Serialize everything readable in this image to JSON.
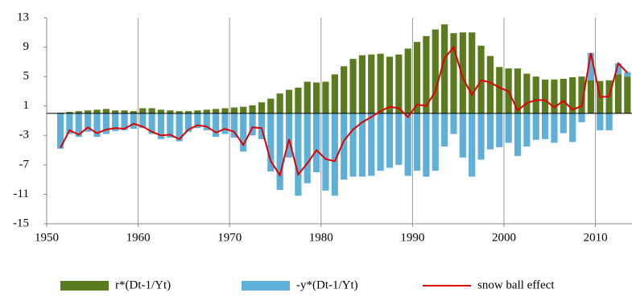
{
  "chart_data": {
    "type": "bar",
    "x": [
      1951,
      1952,
      1953,
      1954,
      1955,
      1956,
      1957,
      1958,
      1959,
      1960,
      1961,
      1962,
      1963,
      1964,
      1965,
      1966,
      1967,
      1968,
      1969,
      1970,
      1971,
      1972,
      1973,
      1974,
      1975,
      1976,
      1977,
      1978,
      1979,
      1980,
      1981,
      1982,
      1983,
      1984,
      1985,
      1986,
      1987,
      1988,
      1989,
      1990,
      1991,
      1992,
      1993,
      1994,
      1995,
      1996,
      1997,
      1998,
      1999,
      2000,
      2001,
      2002,
      2003,
      2004,
      2005,
      2006,
      2007,
      2008,
      2009,
      2010,
      2011,
      2012,
      2013
    ],
    "series": [
      {
        "name": "r*(Dt-1/Yt)",
        "color": "#5b7b1f",
        "kind": "bar",
        "values": [
          0.1,
          0.2,
          0.3,
          0.4,
          0.5,
          0.6,
          0.4,
          0.4,
          0.3,
          0.7,
          0.7,
          0.5,
          0.4,
          0.3,
          0.3,
          0.4,
          0.5,
          0.6,
          0.7,
          0.8,
          0.9,
          1.1,
          1.5,
          2.0,
          2.7,
          3.2,
          3.5,
          4.3,
          4.2,
          4.3,
          5.3,
          6.4,
          7.4,
          7.9,
          8.0,
          8.1,
          7.7,
          8.0,
          8.8,
          9.7,
          10.5,
          11.4,
          12.1,
          10.9,
          11.0,
          11.0,
          9.2,
          7.8,
          6.3,
          6.1,
          6.1,
          5.4,
          5.0,
          4.6,
          4.6,
          4.7,
          4.9,
          5.0,
          4.5,
          4.4,
          4.5,
          5.3,
          5.0
        ]
      },
      {
        "name": "-y*(Dt-1/Yt)",
        "color": "#5fb0d8",
        "kind": "bar",
        "values": [
          -4.8,
          -2.8,
          -3.2,
          -2.5,
          -3.2,
          -2.8,
          -2.4,
          -2.3,
          -2.1,
          -2.0,
          -2.8,
          -3.5,
          -3.3,
          -3.8,
          -2.5,
          -2.0,
          -2.3,
          -3.2,
          -2.8,
          -3.3,
          -5.2,
          -3.0,
          -3.5,
          -7.9,
          -10.4,
          -6.0,
          -11.2,
          -9.5,
          -8.0,
          -10.5,
          -11.2,
          -9.0,
          -8.6,
          -8.6,
          -8.5,
          -7.8,
          -7.4,
          -7.0,
          -8.5,
          -7.8,
          -8.6,
          -7.8,
          -4.5,
          -2.8,
          -6.0,
          -8.6,
          -6.3,
          -4.9,
          -4.6,
          -4.0,
          -5.8,
          -4.5,
          -3.6,
          -3.5,
          -4.0,
          -2.7,
          -3.9,
          -1.2,
          3.7,
          -2.3,
          -2.3,
          1.5,
          0.6
        ]
      },
      {
        "name": "snow ball effect",
        "color": "#e00000",
        "kind": "line",
        "values": [
          -4.7,
          -2.3,
          -2.9,
          -1.9,
          -2.7,
          -2.2,
          -2.0,
          -2.1,
          -1.4,
          -1.8,
          -2.5,
          -3.0,
          -2.9,
          -3.5,
          -2.2,
          -1.6,
          -1.8,
          -2.6,
          -2.1,
          -2.5,
          -4.3,
          -1.9,
          -2.0,
          -6.5,
          -8.4,
          -3.5,
          -8.3,
          -6.8,
          -5.0,
          -6.2,
          -6.5,
          -3.7,
          -2.2,
          -1.2,
          -0.5,
          0.3,
          0.9,
          0.7,
          -0.5,
          1.2,
          1.0,
          3.0,
          7.5,
          9.0,
          4.8,
          2.5,
          4.5,
          4.2,
          3.5,
          3.0,
          0.4,
          1.4,
          1.8,
          1.8,
          0.8,
          1.7,
          0.5,
          1.0,
          8.2,
          2.2,
          2.3,
          6.8,
          5.5
        ]
      }
    ],
    "xlim": [
      1950,
      2014
    ],
    "xticks": [
      1950,
      1960,
      1970,
      1980,
      1990,
      2000,
      2010
    ],
    "ylim": [
      -15,
      13
    ],
    "yticks": [
      -15,
      -11,
      -7,
      -3,
      1,
      5,
      9,
      13
    ],
    "grid": "x",
    "legend": "bottom"
  }
}
